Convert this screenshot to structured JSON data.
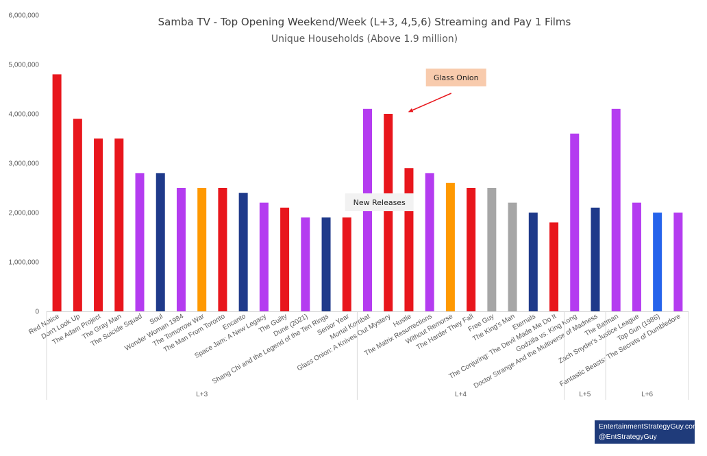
{
  "chart_data": {
    "type": "bar",
    "title": "Samba TV - Top Opening Weekend/Week (L+3, 4,5,6) Streaming and Pay 1 Films",
    "subtitle": "Unique Households (Above 1.9 million)",
    "ylim": [
      0,
      6000000
    ],
    "yticks": [
      "0",
      "1,000,000",
      "2,000,000",
      "3,000,000",
      "4,000,000",
      "5,000,000",
      "6,000,000"
    ],
    "grid": false,
    "legend": "none",
    "categories": [
      "Red Notice",
      "Don't Look Up",
      "The Adam Project",
      "The Gray Man",
      "The Suicide Squad",
      "Soul",
      "Wonder Woman 1984",
      "The Tomorrow War",
      "The Man From Toronto",
      "Encanto",
      "Space Jam: A New Legacy",
      "The Guilty",
      "Dune (2021)",
      "Shang Chi and the Legend of the Ten Rings",
      "Senior Year",
      "Mortal Kombat",
      "Glass Onion: A Knives Out Mystery",
      "Hustle",
      "The Matrix Resurrections",
      "Without Remorse",
      "The Harder They Fall",
      "Free Guy",
      "The King's Man",
      "Eternals",
      "The Conjuring: The Devil Made Me Do It",
      "Godzilla vs. King Kong",
      "Doctor Strange And the Multiverse of Madness",
      "The Batman",
      "Zach Snyder's Justice League",
      "Top Gun (1986)",
      "Fantastic Beasts: The Secrets of Dumbledore"
    ],
    "values": [
      4800000,
      3900000,
      3500000,
      3500000,
      2800000,
      2800000,
      2500000,
      2500000,
      2500000,
      2400000,
      2200000,
      2100000,
      1900000,
      1900000,
      1900000,
      4100000,
      4000000,
      2900000,
      2800000,
      2600000,
      2500000,
      2500000,
      2200000,
      2000000,
      1800000,
      3600000,
      2100000,
      4100000,
      2200000,
      2000000,
      2000000
    ],
    "colors": [
      "#e8161c",
      "#e8161c",
      "#e8161c",
      "#e8161c",
      "#b43cf0",
      "#1f3a8a",
      "#b43cf0",
      "#ff9900",
      "#e8161c",
      "#1f3a8a",
      "#b43cf0",
      "#e8161c",
      "#b43cf0",
      "#1f3a8a",
      "#e8161c",
      "#b43cf0",
      "#e8161c",
      "#e8161c",
      "#b43cf0",
      "#ff9900",
      "#e8161c",
      "#a6a6a6",
      "#a6a6a6",
      "#1f3a8a",
      "#e8161c",
      "#b43cf0",
      "#1f3a8a",
      "#b43cf0",
      "#b43cf0",
      "#2563eb",
      "#b43cf0"
    ],
    "groups": [
      {
        "label": "L+3",
        "start": 0,
        "end": 14
      },
      {
        "label": "L+4",
        "start": 15,
        "end": 24
      },
      {
        "label": "L+5",
        "start": 25,
        "end": 26
      },
      {
        "label": "L+6",
        "start": 27,
        "end": 30
      }
    ],
    "annotations": [
      {
        "text": "Glass Onion",
        "target_index": 16,
        "box_color": "#f8cbad"
      },
      {
        "text": "New Releases",
        "target_index": 16,
        "box_color": "#f2f2f2"
      }
    ]
  },
  "credit": {
    "line1": "EntertainmentStrategyGuy.com",
    "line2": "@EntStrategyGuy"
  }
}
